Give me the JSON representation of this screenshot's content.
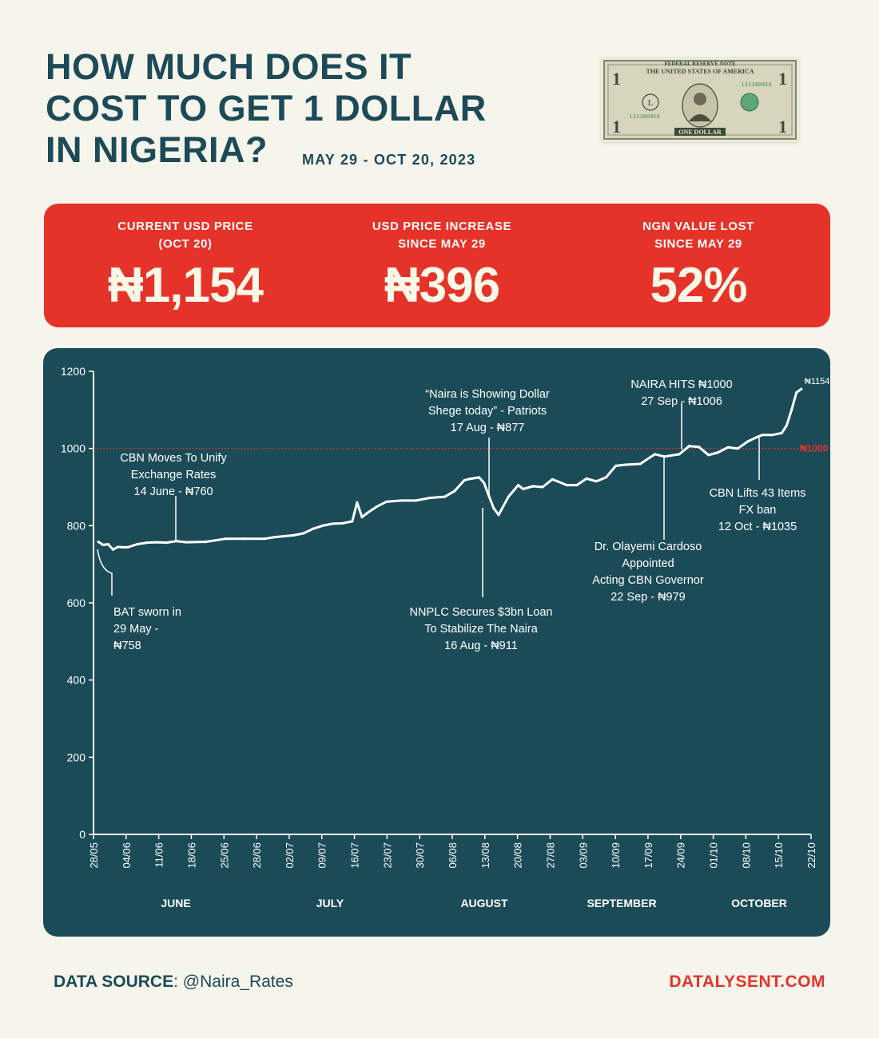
{
  "header": {
    "title_lines": [
      "HOW MUCH DOES IT",
      "COST TO GET 1 DOLLAR",
      "IN NIGERIA?"
    ],
    "subtitle": "MAY 29 - OCT 20, 2023",
    "bill": {
      "top_text": "FEDERAL RESERVE NOTE",
      "country": "THE UNITED STATES OF AMERICA",
      "serial": "L11180916",
      "bottom_text": "ONE DOLLAR",
      "denomination": "1"
    }
  },
  "stats": [
    {
      "label_lines": [
        "CURRENT USD PRICE",
        "(OCT 20)"
      ],
      "value": "₦1,154"
    },
    {
      "label_lines": [
        "USD PRICE INCREASE",
        "SINCE MAY 29"
      ],
      "value": "₦396"
    },
    {
      "label_lines": [
        "NGN VALUE LOST",
        "SINCE  MAY 29"
      ],
      "value": "52%"
    }
  ],
  "colors": {
    "background": "#f5f5ec",
    "navy": "#1c4a57",
    "panel": "#1b4b57",
    "red": "#e6332a",
    "line": "#ffffff",
    "ref_line": "#e6332a"
  },
  "chart_data": {
    "type": "line",
    "ylim": [
      0,
      1200
    ],
    "yticks": [
      0,
      200,
      400,
      600,
      800,
      1000,
      1200
    ],
    "x_date_range": [
      "2023-05-28",
      "2023-10-22"
    ],
    "xtick_labels": [
      "28/05",
      "04/06",
      "11/06",
      "18/06",
      "25/06",
      "28/06",
      "02/07",
      "09/07",
      "16/07",
      "23/07",
      "30/07",
      "06/08",
      "13/08",
      "20/08",
      "27/08",
      "03/09",
      "10/09",
      "17/09",
      "24/09",
      "01/10",
      "08/10",
      "15/10",
      "22/10"
    ],
    "month_labels": [
      "JUNE",
      "JULY",
      "AUGUST",
      "SEPTEMBER",
      "OCTOBER"
    ],
    "reference_line": {
      "value": 1000,
      "label": "₦1000"
    },
    "end_label": "₦1154",
    "series": [
      {
        "x": [
          "2023-05-29",
          "2023-05-30",
          "2023-05-31",
          "2023-06-01",
          "2023-06-02",
          "2023-06-03",
          "2023-06-04",
          "2023-06-06",
          "2023-06-08",
          "2023-06-10",
          "2023-06-12",
          "2023-06-14",
          "2023-06-16",
          "2023-06-20",
          "2023-06-24",
          "2023-06-28",
          "2023-07-02",
          "2023-07-04",
          "2023-07-08",
          "2023-07-10",
          "2023-07-12",
          "2023-07-14",
          "2023-07-16",
          "2023-07-18",
          "2023-07-20",
          "2023-07-21",
          "2023-07-22",
          "2023-07-23",
          "2023-07-25",
          "2023-07-27",
          "2023-07-30",
          "2023-08-02",
          "2023-08-05",
          "2023-08-08",
          "2023-08-10",
          "2023-08-12",
          "2023-08-13",
          "2023-08-15",
          "2023-08-16",
          "2023-08-17",
          "2023-08-18",
          "2023-08-19",
          "2023-08-21",
          "2023-08-23",
          "2023-08-24",
          "2023-08-26",
          "2023-08-28",
          "2023-08-30",
          "2023-09-02",
          "2023-09-04",
          "2023-09-06",
          "2023-09-08",
          "2023-09-10",
          "2023-09-12",
          "2023-09-14",
          "2023-09-17",
          "2023-09-20",
          "2023-09-22",
          "2023-09-25",
          "2023-09-27",
          "2023-09-29",
          "2023-10-01",
          "2023-10-03",
          "2023-10-05",
          "2023-10-07",
          "2023-10-09",
          "2023-10-11",
          "2023-10-12",
          "2023-10-14",
          "2023-10-16",
          "2023-10-17",
          "2023-10-18",
          "2023-10-19",
          "2023-10-20"
        ],
        "y": [
          758,
          750,
          752,
          738,
          745,
          744,
          744,
          752,
          756,
          757,
          756,
          760,
          757,
          758,
          766,
          766,
          766,
          770,
          775,
          780,
          792,
          800,
          805,
          806,
          811,
          860,
          822,
          832,
          849,
          862,
          865,
          865,
          872,
          875,
          890,
          918,
          921,
          925,
          911,
          877,
          845,
          828,
          875,
          905,
          895,
          902,
          900,
          920,
          905,
          905,
          922,
          915,
          925,
          955,
          958,
          960,
          985,
          979,
          985,
          1006,
          1004,
          983,
          990,
          1003,
          1000,
          1018,
          1030,
          1035,
          1035,
          1040,
          1060,
          1100,
          1145,
          1154
        ]
      }
    ],
    "annotations": [
      {
        "lines": [
          "BAT sworn in",
          "29 May -",
          "₦758"
        ],
        "date": "2023-05-29",
        "value": 758
      },
      {
        "lines": [
          "CBN Moves To Unify",
          "Exchange Rates",
          "14 June - ₦760"
        ],
        "date": "2023-06-14",
        "value": 760
      },
      {
        "lines": [
          "“Naira is Showing Dollar",
          "Shege today” - Patriots",
          "17 Aug - ₦877"
        ],
        "date": "2023-08-17",
        "value": 877
      },
      {
        "lines": [
          "NNPLC Secures $3bn Loan",
          "To Stabilize The Naira",
          "16 Aug - ₦911"
        ],
        "date": "2023-08-16",
        "value": 911
      },
      {
        "lines": [
          "NAIRA HITS ₦1000",
          "27 Sep - ₦1006"
        ],
        "date": "2023-09-27",
        "value": 1006
      },
      {
        "lines": [
          "Dr. Olayemi Cardoso",
          "Appointed",
          "Acting CBN Governor",
          "22 Sep - ₦979"
        ],
        "date": "2023-09-22",
        "value": 979
      },
      {
        "lines": [
          "CBN Lifts 43 Items",
          "FX ban",
          "12 Oct - ₦1035"
        ],
        "date": "2023-10-12",
        "value": 1035
      }
    ]
  },
  "footer": {
    "source_label": "DATA SOURCE",
    "source_value": ": @Naira_Rates",
    "site": "DATALYSENT.COM"
  }
}
